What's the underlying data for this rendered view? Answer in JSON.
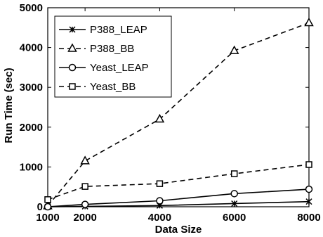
{
  "chart_data": {
    "type": "line",
    "title": "",
    "xlabel": "Data Size",
    "ylabel": "Run Time (sec)",
    "xlim": [
      1000,
      8000
    ],
    "ylim": [
      0,
      5000
    ],
    "xticks": [
      1000,
      2000,
      4000,
      6000,
      8000
    ],
    "yticks": [
      0,
      1000,
      2000,
      3000,
      4000,
      5000
    ],
    "grid": false,
    "legend_position": "top-left",
    "series": [
      {
        "name": "P388_LEAP",
        "line_style": "solid",
        "marker": "x",
        "color": "#000000",
        "x": [
          1000,
          2000,
          4000,
          6000,
          8000
        ],
        "y": [
          0,
          10,
          30,
          80,
          130
        ]
      },
      {
        "name": "P388_BB",
        "line_style": "dashed",
        "marker": "triangle",
        "color": "#000000",
        "x": [
          1000,
          2000,
          4000,
          6000,
          8000
        ],
        "y": [
          20,
          1150,
          2200,
          3920,
          4620
        ]
      },
      {
        "name": "Yeast_LEAP",
        "line_style": "solid",
        "marker": "circle",
        "color": "#000000",
        "x": [
          1000,
          2000,
          4000,
          6000,
          8000
        ],
        "y": [
          0,
          60,
          150,
          330,
          440
        ]
      },
      {
        "name": "Yeast_BB",
        "line_style": "dashed",
        "marker": "square",
        "color": "#000000",
        "x": [
          1000,
          2000,
          4000,
          6000,
          8000
        ],
        "y": [
          180,
          510,
          580,
          830,
          1060
        ]
      }
    ]
  }
}
